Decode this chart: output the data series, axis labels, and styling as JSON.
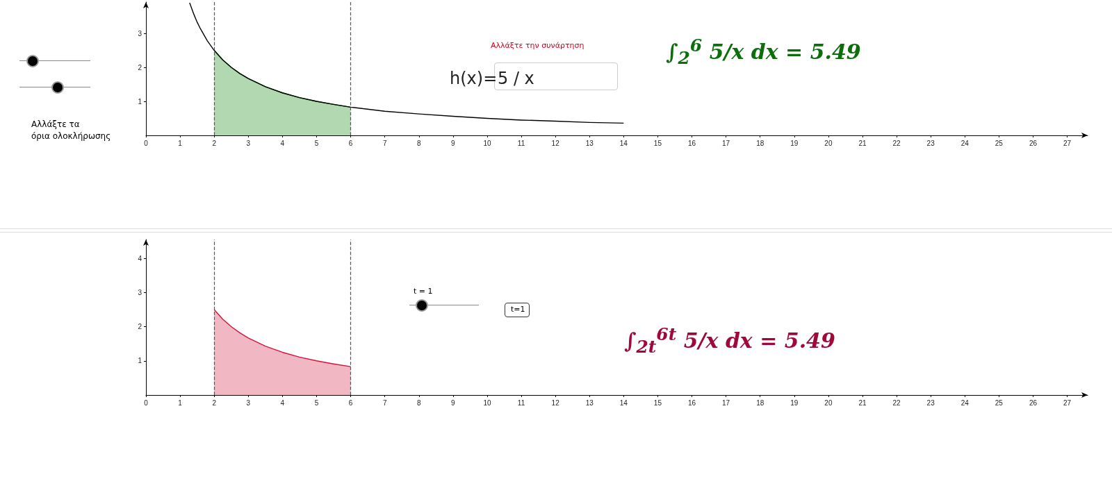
{
  "chart_data": [
    {
      "type": "line",
      "xlim": [
        0,
        27.6
      ],
      "xticks": [
        0,
        1,
        2,
        3,
        4,
        5,
        6,
        7,
        8,
        9,
        10,
        11,
        12,
        13,
        14,
        15,
        16,
        17,
        18,
        19,
        20,
        21,
        22,
        23,
        24,
        25,
        26,
        27
      ],
      "ylim": [
        0,
        3.92
      ],
      "yticks": [
        1,
        2,
        3
      ],
      "grid": false,
      "series": [
        {
          "type": "area",
          "color": "#007f00",
          "x": [
            2,
            2.25,
            2.5,
            2.75,
            3,
            3.5,
            4,
            4.5,
            5,
            5.5,
            6
          ],
          "values": [
            2.5,
            2.22,
            2,
            1.82,
            1.67,
            1.43,
            1.25,
            1.11,
            1,
            0.91,
            0.83
          ]
        },
        {
          "type": "line",
          "color": "#000000",
          "x": [
            1.28,
            1.4,
            1.5,
            1.6,
            1.8,
            2,
            2.25,
            2.5,
            2.75,
            3,
            3.5,
            4,
            4.5,
            5,
            5.5,
            6,
            7,
            8,
            9,
            10,
            11,
            12,
            13,
            14
          ],
          "values": [
            3.9,
            3.57,
            3.33,
            3.13,
            2.78,
            2.5,
            2.22,
            2,
            1.82,
            1.67,
            1.43,
            1.25,
            1.11,
            1,
            0.91,
            0.83,
            0.71,
            0.63,
            0.56,
            0.5,
            0.45,
            0.42,
            0.38,
            0.36
          ]
        }
      ],
      "ref_lines": [
        {
          "axis": "x",
          "value": 2,
          "color": "#555555",
          "line_style": "dashed"
        },
        {
          "axis": "x",
          "value": 6,
          "color": "#555555",
          "line_style": "dashed"
        }
      ],
      "annotations": [
        "Αλλάξτε τα\nόρια ολοκλήρωσης",
        "Αλλάξτε την συνάρτηση",
        "h(x)=",
        "5 / x",
        "∫$_{2}$$^{6}$ 5/x dx = 5.49"
      ]
    },
    {
      "type": "line",
      "xlim": [
        0,
        27.6
      ],
      "xticks": [
        0,
        1,
        2,
        3,
        4,
        5,
        6,
        7,
        8,
        9,
        10,
        11,
        12,
        13,
        14,
        15,
        16,
        17,
        18,
        19,
        20,
        21,
        22,
        23,
        24,
        25,
        26,
        27
      ],
      "ylim": [
        0,
        4.55
      ],
      "yticks": [
        1,
        2,
        3,
        4
      ],
      "grid": false,
      "series": [
        {
          "type": "area",
          "color": "#d2143a",
          "x": [
            2,
            2.25,
            2.5,
            2.75,
            3,
            3.5,
            4,
            4.5,
            5,
            5.5,
            6
          ],
          "values": [
            2.5,
            2.22,
            2,
            1.82,
            1.67,
            1.43,
            1.25,
            1.11,
            1,
            0.91,
            0.83
          ]
        }
      ],
      "ref_lines": [
        {
          "axis": "x",
          "value": 2,
          "color": "#555555",
          "line_style": "dashed"
        },
        {
          "axis": "x",
          "value": 6,
          "color": "#555555",
          "line_style": "dashed"
        }
      ],
      "annotations": [
        "t = 1",
        "t=1",
        "∫$_{2t}$$^{6t}$ 5/x dx = 5.49"
      ]
    }
  ]
}
